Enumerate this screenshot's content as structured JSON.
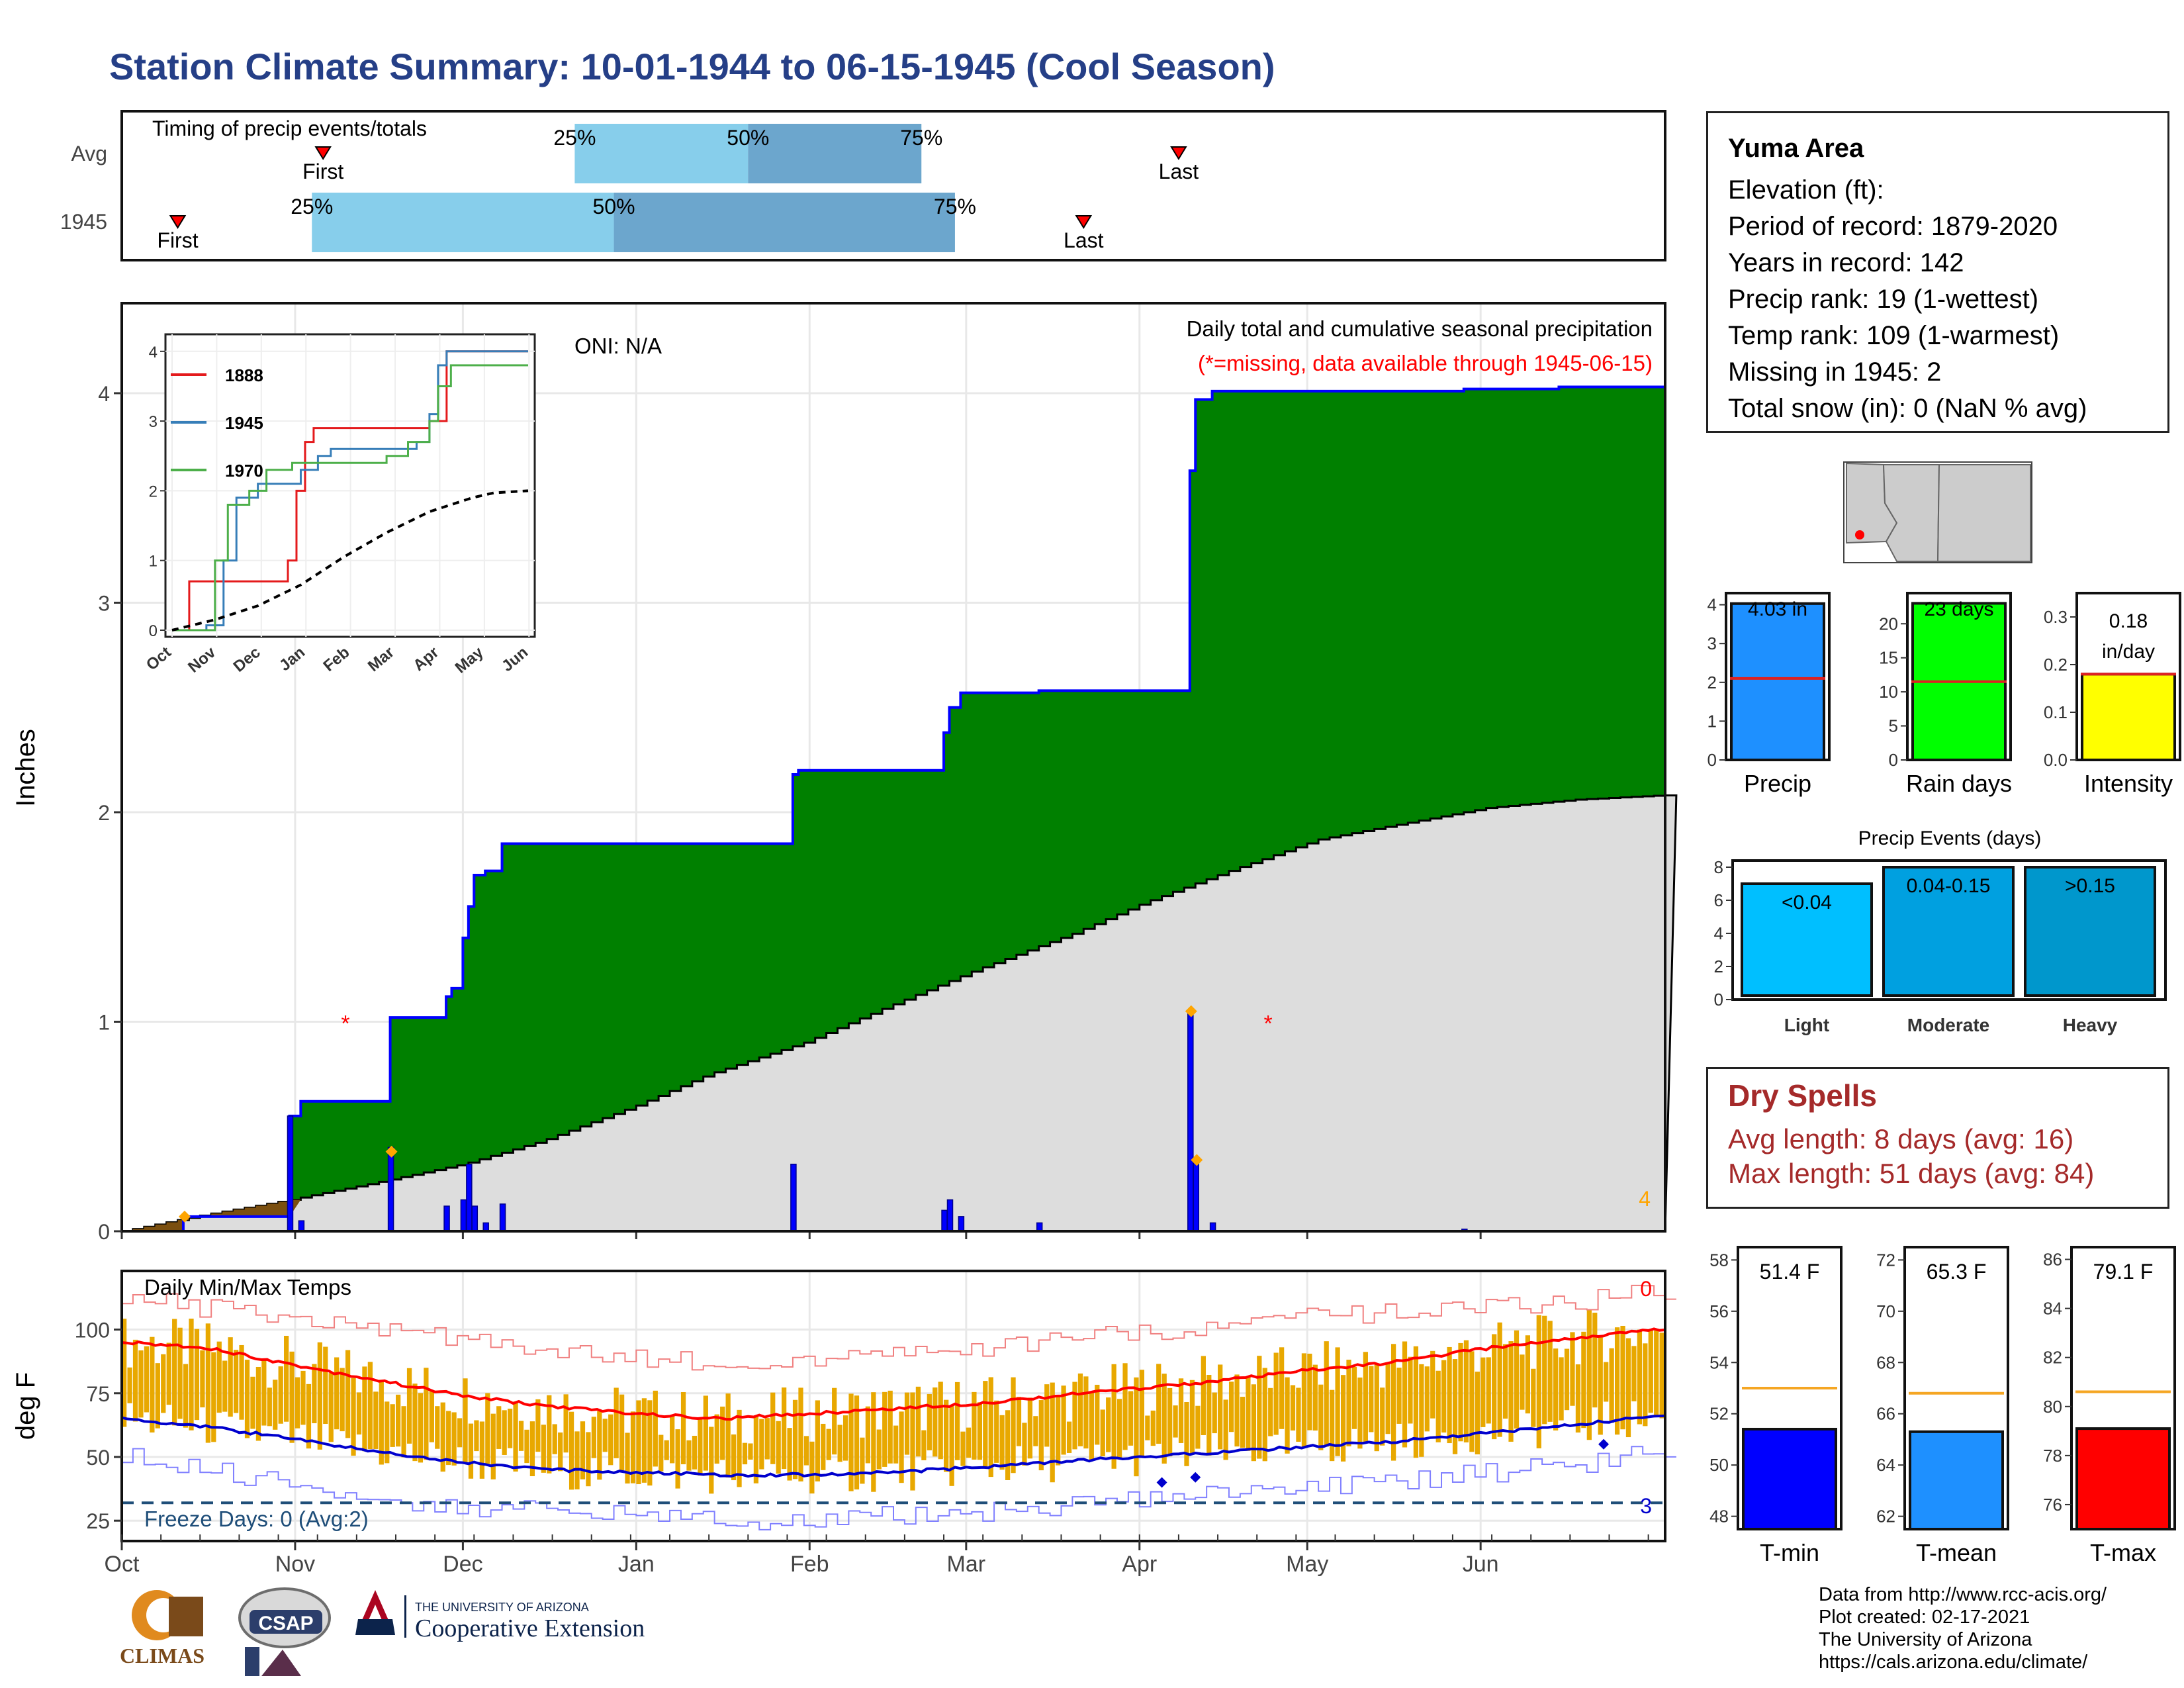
{
  "page": {
    "title": "Station Climate Summary: 10-01-1944 to 06-15-1945 (Cool Season)"
  },
  "colors": {
    "title_blue": "#253f87",
    "cumulative_fill": "#008000",
    "climatology_fill": "#dddddd",
    "precip_bars": "#0000ff",
    "light_blue": "#87ceeb",
    "mid_blue": "#6ca6cd",
    "avg_line_red": "#ff0000",
    "temp_bar_gold": "#e8a800",
    "tmin_line": "#0000cd",
    "freeze_line": "#1f4e79",
    "dry_spell_text": "#a52a2a"
  },
  "timing_panel": {
    "title": "Timing of precip events/totals",
    "rows": [
      {
        "label": "Avg",
        "first": "Nov 06",
        "last": "Apr 08",
        "p25": "Dec 21",
        "p50": "Jan 21",
        "p75": "Feb 21",
        "first_label": "First",
        "last_label": "Last",
        "p25_label": "25%",
        "p50_label": "50%",
        "p75_label": "75%"
      },
      {
        "label": "1945",
        "first": "Oct 11",
        "last": "Mar 22",
        "p25": "Nov 04",
        "p50": "Dec 28",
        "p75": "Feb 27",
        "first_label": "First",
        "last_label": "Last",
        "p25_label": "25%",
        "p50_label": "50%",
        "p75_label": "75%"
      }
    ]
  },
  "precip_panel": {
    "title": "Daily total and cumulative seasonal precipitation",
    "missing_note": "(*=missing, data available through 1945-06-15)",
    "oni": "ONI: N/A",
    "ylabel": "Inches",
    "yticks": [
      "0",
      "1",
      "2",
      "3",
      "4"
    ],
    "corner_count": "4"
  },
  "inset": {
    "legend": [
      "1888",
      "1945",
      "1970"
    ],
    "legend_colors": [
      "#e41a1c",
      "#377eb8",
      "#4daf4a"
    ],
    "yticks": [
      "0",
      "1",
      "2",
      "3",
      "4"
    ],
    "xticks": [
      "Oct",
      "Nov",
      "Dec",
      "Jan",
      "Feb",
      "Mar",
      "Apr",
      "May",
      "Jun"
    ]
  },
  "temp_panel": {
    "title": "Daily Min/Max Temps",
    "ylabel": "deg F",
    "yticks": [
      "25",
      "50",
      "75",
      "100"
    ],
    "freeze_label": "Freeze Days: 0 (Avg:2)",
    "hot_count": "0",
    "cold_count": "3",
    "xticks": [
      "Oct",
      "Nov",
      "Dec",
      "Jan",
      "Feb",
      "Mar",
      "Apr",
      "May",
      "Jun"
    ]
  },
  "station": {
    "name": "Yuma Area",
    "elevation": "Elevation (ft):",
    "period": "Period of record: 1879-2020",
    "years": "Years in record: 142",
    "precip_rank": "Precip rank: 19 (1-wettest)",
    "temp_rank": "Temp rank: 109 (1-warmest)",
    "missing": "Missing in 1945: 2",
    "snow": "Total snow (in): 0 (NaN % avg)"
  },
  "summary_bars": {
    "precip": {
      "label": "Precip",
      "value_text": "4.03 in",
      "value": 4.03,
      "avg": 2.1,
      "yticks": [
        "0",
        "1",
        "2",
        "3",
        "4"
      ],
      "color": "#1e90ff"
    },
    "rain_days": {
      "label": "Rain days",
      "value_text": "23 days",
      "value": 23,
      "avg": 11.5,
      "yticks": [
        "0",
        "5",
        "10",
        "15",
        "20"
      ],
      "color": "#00ff00"
    },
    "intensity": {
      "label": "Intensity",
      "value_text": "0.18",
      "value_unit": "in/day",
      "value": 0.18,
      "avg": 0.18,
      "yticks": [
        "0.0",
        "0.1",
        "0.2",
        "0.3"
      ],
      "color": "#ffff00"
    }
  },
  "events": {
    "title": "Precip Events (days)",
    "yticks": [
      "0",
      "2",
      "4",
      "6",
      "8"
    ],
    "categories": [
      "Light",
      "Moderate",
      "Heavy"
    ],
    "bar_labels": [
      "<0.04",
      "0.04-0.15",
      ">0.15"
    ],
    "values": [
      7,
      8,
      8
    ],
    "colors": [
      "#00bfff",
      "#00a0e0",
      "#0097cc"
    ]
  },
  "dry_spells": {
    "title": "Dry Spells",
    "avg_length": "Avg length: 8 days (avg: 16)",
    "max_length": "Max length: 51 days (avg: 84)"
  },
  "temp_bars": {
    "tmin": {
      "label": "T-min",
      "value_text": "51.4 F",
      "value": 51.4,
      "avg": 53.0,
      "yticks": [
        "48",
        "50",
        "52",
        "54",
        "56",
        "58"
      ],
      "color": "#0000ff"
    },
    "tmean": {
      "label": "T-mean",
      "value_text": "65.3 F",
      "value": 65.3,
      "avg": 66.8,
      "yticks": [
        "62",
        "64",
        "66",
        "68",
        "70",
        "72"
      ],
      "color": "#1e90ff"
    },
    "tmax": {
      "label": "T-max",
      "value_text": "79.1 F",
      "value": 79.1,
      "avg": 80.6,
      "yticks": [
        "76",
        "78",
        "80",
        "82",
        "84",
        "86"
      ],
      "color": "#ff0000"
    }
  },
  "credits": {
    "l1": "Data from http://www.rcc-acis.org/",
    "l2": "Plot created: 02-17-2021",
    "l3": "The University of Arizona",
    "l4": "https://cals.arizona.edu/climate/"
  },
  "logos": {
    "climas": "CLIMAS",
    "csap": "CSAP",
    "ua_small": "THE UNIVERSITY OF ARIZONA",
    "ua_big": "Cooperative Extension"
  },
  "chart_data": [
    {
      "type": "area",
      "title": "Daily total and cumulative seasonal precipitation",
      "ylabel": "Inches",
      "ylim": [
        0,
        4.4
      ],
      "x_unit": "day of season (Oct 1 = 0)",
      "cumulative_1945": [
        [
          0,
          0
        ],
        [
          11,
          0.07
        ],
        [
          29,
          0.07
        ],
        [
          30,
          0.55
        ],
        [
          32,
          0.62
        ],
        [
          47,
          0.62
        ],
        [
          48,
          1.02
        ],
        [
          56,
          1.02
        ],
        [
          58,
          1.12
        ],
        [
          59,
          1.16
        ],
        [
          61,
          1.4
        ],
        [
          62,
          1.55
        ],
        [
          63,
          1.7
        ],
        [
          65,
          1.72
        ],
        [
          68,
          1.85
        ],
        [
          87,
          1.85
        ],
        [
          87.5,
          1.85
        ],
        [
          119,
          1.85
        ],
        [
          120,
          2.18
        ],
        [
          121,
          2.2
        ],
        [
          146,
          2.2
        ],
        [
          147,
          2.38
        ],
        [
          148,
          2.5
        ],
        [
          150,
          2.57
        ],
        [
          163,
          2.57
        ],
        [
          164,
          2.58
        ],
        [
          190,
          2.58
        ],
        [
          191,
          3.63
        ],
        [
          192,
          3.97
        ],
        [
          195,
          4.01
        ],
        [
          205,
          4.01
        ],
        [
          240,
          4.02
        ],
        [
          257,
          4.03
        ]
      ],
      "climatology": [
        [
          0,
          0
        ],
        [
          15,
          0.08
        ],
        [
          30,
          0.15
        ],
        [
          45,
          0.23
        ],
        [
          61,
          0.32
        ],
        [
          75,
          0.43
        ],
        [
          92,
          0.6
        ],
        [
          105,
          0.75
        ],
        [
          122,
          0.9
        ],
        [
          135,
          1.05
        ],
        [
          153,
          1.25
        ],
        [
          170,
          1.42
        ],
        [
          183,
          1.57
        ],
        [
          198,
          1.72
        ],
        [
          214,
          1.87
        ],
        [
          230,
          1.95
        ],
        [
          244,
          2.02
        ],
        [
          260,
          2.06
        ],
        [
          275,
          2.08
        ]
      ],
      "daily_events": [
        [
          30,
          0.55
        ],
        [
          32,
          0.05
        ],
        [
          48,
          0.4
        ],
        [
          58,
          0.12
        ],
        [
          61,
          0.15
        ],
        [
          62,
          0.32
        ],
        [
          63,
          0.12
        ],
        [
          65,
          0.04
        ],
        [
          68,
          0.13
        ],
        [
          120,
          0.32
        ],
        [
          147,
          0.1
        ],
        [
          148,
          0.15
        ],
        [
          150,
          0.07
        ],
        [
          164,
          0.04
        ],
        [
          191,
          1.05
        ],
        [
          192,
          0.34
        ],
        [
          195,
          0.04
        ],
        [
          240,
          0.01
        ]
      ],
      "missing_days": [
        40,
        205
      ],
      "event_markers": [
        [
          11,
          0.07
        ],
        [
          48,
          0.38
        ],
        [
          191,
          1.05
        ],
        [
          192,
          0.34
        ]
      ]
    },
    {
      "type": "line",
      "title": "Inset cumulative comparison",
      "series": [
        {
          "name": "1888",
          "values": [
            [
              0,
              0
            ],
            [
              4,
              0.7
            ],
            [
              20,
              0.7
            ],
            [
              27,
              1.0
            ],
            [
              29,
              2.0
            ],
            [
              31,
              2.7
            ],
            [
              33,
              2.9
            ],
            [
              41,
              2.9
            ],
            [
              55,
              2.9
            ],
            [
              60,
              3.0
            ],
            [
              64,
              4.0
            ],
            [
              83,
              4.0
            ]
          ]
        },
        {
          "name": "1945",
          "values": [
            [
              0,
              0
            ],
            [
              8,
              0.07
            ],
            [
              12,
              1.0
            ],
            [
              15,
              1.9
            ],
            [
              20,
              2.1
            ],
            [
              25,
              2.1
            ],
            [
              30,
              2.3
            ],
            [
              34,
              2.5
            ],
            [
              37,
              2.6
            ],
            [
              40,
              2.6
            ],
            [
              50,
              2.6
            ],
            [
              57,
              2.7
            ],
            [
              60,
              3.1
            ],
            [
              62,
              3.8
            ],
            [
              64,
              4.0
            ],
            [
              83,
              4.0
            ]
          ]
        },
        {
          "name": "1970",
          "values": [
            [
              0,
              0
            ],
            [
              9,
              0.0
            ],
            [
              10,
              1.0
            ],
            [
              13,
              1.8
            ],
            [
              18,
              2.0
            ],
            [
              22,
              2.3
            ],
            [
              28,
              2.4
            ],
            [
              37,
              2.4
            ],
            [
              46,
              2.4
            ],
            [
              50,
              2.5
            ],
            [
              55,
              2.7
            ],
            [
              60,
              3.0
            ],
            [
              62,
              3.5
            ],
            [
              65,
              3.8
            ],
            [
              83,
              3.8
            ]
          ]
        },
        {
          "name": "climatology",
          "values": [
            [
              0,
              0
            ],
            [
              10,
              0.15
            ],
            [
              20,
              0.35
            ],
            [
              30,
              0.65
            ],
            [
              40,
              1.05
            ],
            [
              50,
              1.4
            ],
            [
              60,
              1.7
            ],
            [
              70,
              1.9
            ],
            [
              75,
              1.97
            ],
            [
              83,
              2.0
            ]
          ]
        }
      ],
      "ylim": [
        0,
        4
      ]
    },
    {
      "type": "line",
      "title": "Daily Min/Max Temps",
      "ylabel": "deg F",
      "ylim": [
        17,
        123
      ],
      "avg_max": [
        [
          0,
          95
        ],
        [
          15,
          93
        ],
        [
          31,
          86
        ],
        [
          46,
          80
        ],
        [
          61,
          74
        ],
        [
          76,
          70
        ],
        [
          92,
          67
        ],
        [
          107,
          65
        ],
        [
          123,
          67
        ],
        [
          138,
          69
        ],
        [
          153,
          71
        ],
        [
          167,
          74
        ],
        [
          182,
          77
        ],
        [
          197,
          80
        ],
        [
          212,
          84
        ],
        [
          227,
          87
        ],
        [
          242,
          92
        ],
        [
          257,
          96
        ],
        [
          270,
          99
        ],
        [
          280,
          101
        ]
      ],
      "avg_min": [
        [
          0,
          65
        ],
        [
          15,
          62
        ],
        [
          31,
          57
        ],
        [
          46,
          52
        ],
        [
          61,
          48
        ],
        [
          76,
          45
        ],
        [
          92,
          44
        ],
        [
          107,
          43
        ],
        [
          123,
          43
        ],
        [
          138,
          44
        ],
        [
          153,
          46
        ],
        [
          167,
          48
        ],
        [
          182,
          50
        ],
        [
          197,
          52
        ],
        [
          212,
          54
        ],
        [
          227,
          56
        ],
        [
          242,
          59
        ],
        [
          257,
          62
        ],
        [
          270,
          65
        ],
        [
          280,
          67
        ]
      ],
      "record_high": [
        [
          0,
          112
        ],
        [
          30,
          105
        ],
        [
          60,
          96
        ],
        [
          92,
          88
        ],
        [
          120,
          87
        ],
        [
          150,
          92
        ],
        [
          180,
          98
        ],
        [
          210,
          104
        ],
        [
          240,
          109
        ],
        [
          265,
          112
        ],
        [
          280,
          116
        ]
      ],
      "record_low": [
        [
          0,
          50
        ],
        [
          30,
          40
        ],
        [
          60,
          30
        ],
        [
          92,
          27
        ],
        [
          120,
          25
        ],
        [
          150,
          28
        ],
        [
          180,
          33
        ],
        [
          210,
          38
        ],
        [
          240,
          43
        ],
        [
          265,
          48
        ],
        [
          280,
          56
        ]
      ],
      "freeze_threshold": 32
    },
    {
      "type": "bar",
      "title": "Precip Events (days)",
      "categories": [
        "Light",
        "Moderate",
        "Heavy"
      ],
      "values": [
        7,
        8,
        8
      ],
      "ylim": [
        0,
        8
      ]
    }
  ]
}
